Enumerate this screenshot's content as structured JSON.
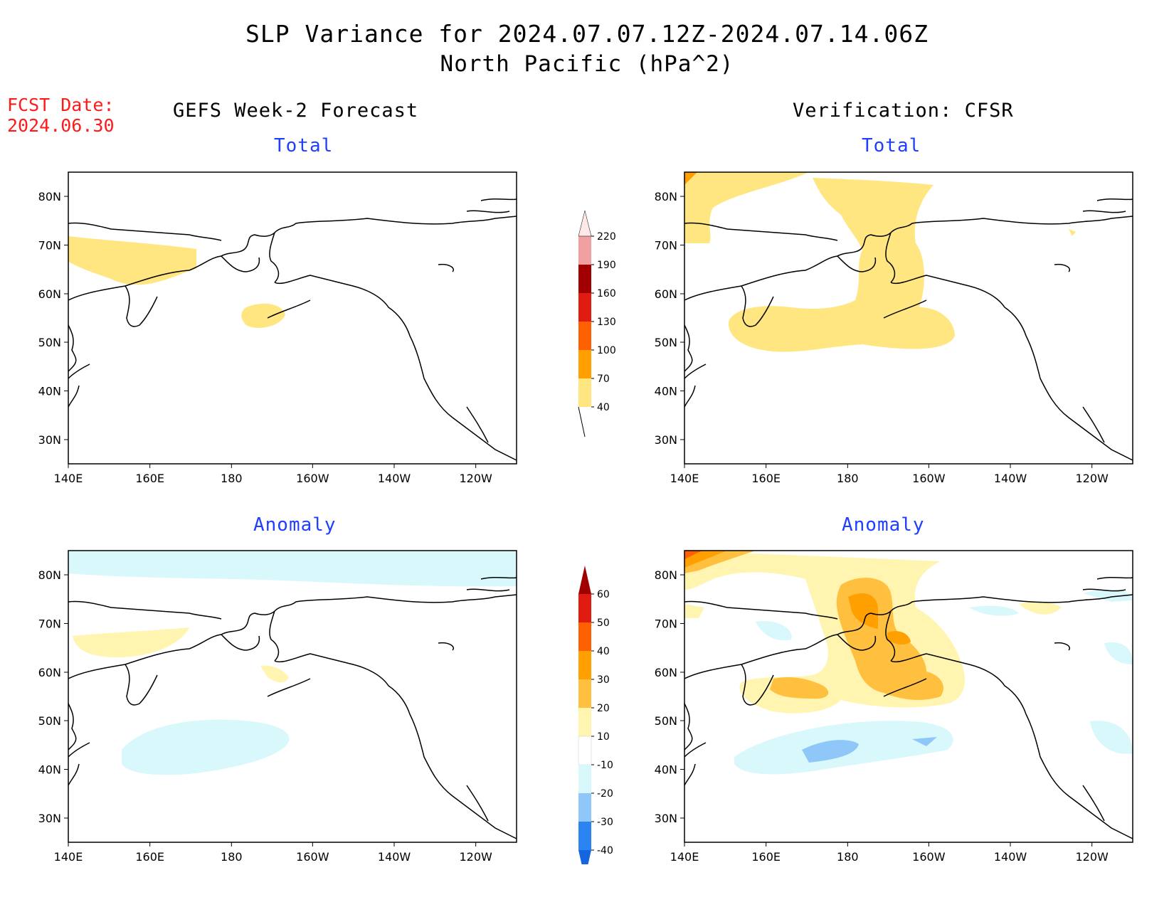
{
  "title": "SLP Variance for 2024.07.07.12Z-2024.07.14.06Z",
  "subtitle": "North Pacific (hPa^2)",
  "fcst_label": "FCST Date:",
  "fcst_date": "2024.06.30",
  "left_heading": "GEFS Week-2 Forecast",
  "right_heading": "Verification: CFSR",
  "panel_total": "Total",
  "panel_anomaly": "Anomaly",
  "map": {
    "lon_labels": [
      "140E",
      "160E",
      "180",
      "160W",
      "140W",
      "120W"
    ],
    "lat_labels": [
      "80N",
      "70N",
      "60N",
      "50N",
      "40N",
      "30N"
    ]
  },
  "total_scale": {
    "labels": [
      "40",
      "70",
      "100",
      "130",
      "160",
      "190",
      "220"
    ],
    "colors": [
      "#ffe680",
      "#ffa000",
      "#ff6000",
      "#e01b10",
      "#a00000",
      "#f0a0a0",
      "#ffe8e8"
    ]
  },
  "anomaly_scale": {
    "labels": [
      "-40",
      "-30",
      "-20",
      "-10",
      "10",
      "20",
      "30",
      "40",
      "50",
      "60"
    ],
    "colors": [
      "#1565e0",
      "#2b84f0",
      "#8fc8f8",
      "#d8f8fc",
      "#ffffff",
      "#fff5b0",
      "#ffc040",
      "#ffa000",
      "#ff6000",
      "#e01b10",
      "#a00000"
    ]
  }
}
